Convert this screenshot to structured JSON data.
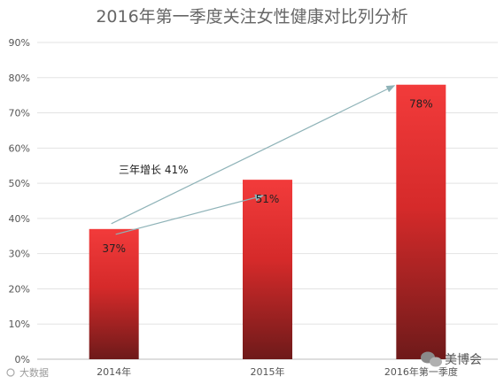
{
  "chart_data": {
    "type": "bar",
    "title": "2016年第一季度关注女性健康对比列分析",
    "categories": [
      "2014年",
      "2015年",
      "2016年第一季度"
    ],
    "values": [
      37,
      51,
      78
    ],
    "data_labels": [
      "37%",
      "51%",
      "78%"
    ],
    "ylim": [
      0,
      90
    ],
    "yticks": [
      "0%",
      "10%",
      "20%",
      "30%",
      "40%",
      "50%",
      "60%",
      "70%",
      "80%",
      "90%"
    ],
    "grid": true,
    "bar_color_top": "#f23b3b",
    "bar_color_bottom": "#6e1a1a",
    "annotation": "三年增长 41%"
  },
  "watermark": {
    "left_text": "大数据",
    "right_text": "美博会"
  }
}
